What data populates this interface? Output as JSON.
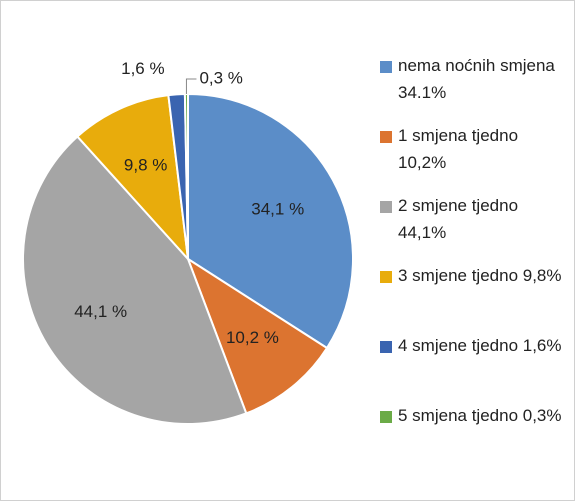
{
  "chart_data": {
    "type": "pie",
    "categories": [
      "nema noćnih smjena 34.1%",
      "1 smjena tjedno 10,2%",
      "2 smjene tjedno 44,1%",
      "3 smjene tjedno 9,8%",
      "4 smjene tjedno 1,6%",
      "5 smjena tjedno 0,3%"
    ],
    "values": [
      34.1,
      10.2,
      44.1,
      9.8,
      1.6,
      0.3
    ],
    "value_labels": [
      "34,1 %",
      "10,2 %",
      "44,1 %",
      "9,8 %",
      "1,6 %",
      "0,3 %"
    ],
    "colors": [
      "#5b8dc8",
      "#dc7430",
      "#a5a5a5",
      "#e8ac0c",
      "#3a64b0",
      "#6bab47"
    ],
    "legend": "right"
  }
}
